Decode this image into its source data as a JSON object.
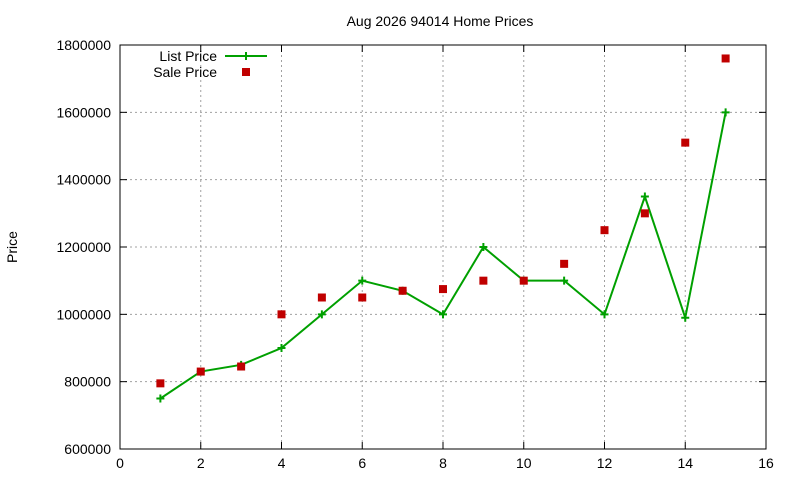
{
  "chart_data": {
    "type": "line",
    "title": "Aug 2026 94014 Home Prices",
    "xlabel": "",
    "ylabel": "Price",
    "xlim": [
      0,
      16
    ],
    "ylim": [
      600000,
      1800000
    ],
    "x_ticks": [
      0,
      2,
      4,
      6,
      8,
      10,
      12,
      14,
      16
    ],
    "y_ticks": [
      600000,
      800000,
      1000000,
      1200000,
      1400000,
      1600000,
      1800000
    ],
    "grid": true,
    "legend_position": "top-left",
    "series": [
      {
        "name": "List Price",
        "style": "line-with-plus-markers",
        "color": "#00a000",
        "x": [
          1,
          2,
          3,
          4,
          5,
          6,
          7,
          8,
          9,
          10,
          11,
          12,
          13,
          14,
          15
        ],
        "values": [
          750000,
          830000,
          850000,
          900000,
          1000000,
          1100000,
          1070000,
          1000000,
          1200000,
          1100000,
          1100000,
          1000000,
          1350000,
          990000,
          1600000
        ]
      },
      {
        "name": "Sale Price",
        "style": "square-markers",
        "color": "#c00000",
        "x": [
          1,
          2,
          3,
          4,
          5,
          6,
          7,
          8,
          9,
          10,
          11,
          12,
          13,
          14,
          15
        ],
        "values": [
          795000,
          830000,
          845000,
          1000000,
          1050000,
          1050000,
          1070000,
          1075000,
          1100000,
          1100000,
          1150000,
          1250000,
          1300000,
          1510000,
          1760000
        ]
      }
    ]
  }
}
